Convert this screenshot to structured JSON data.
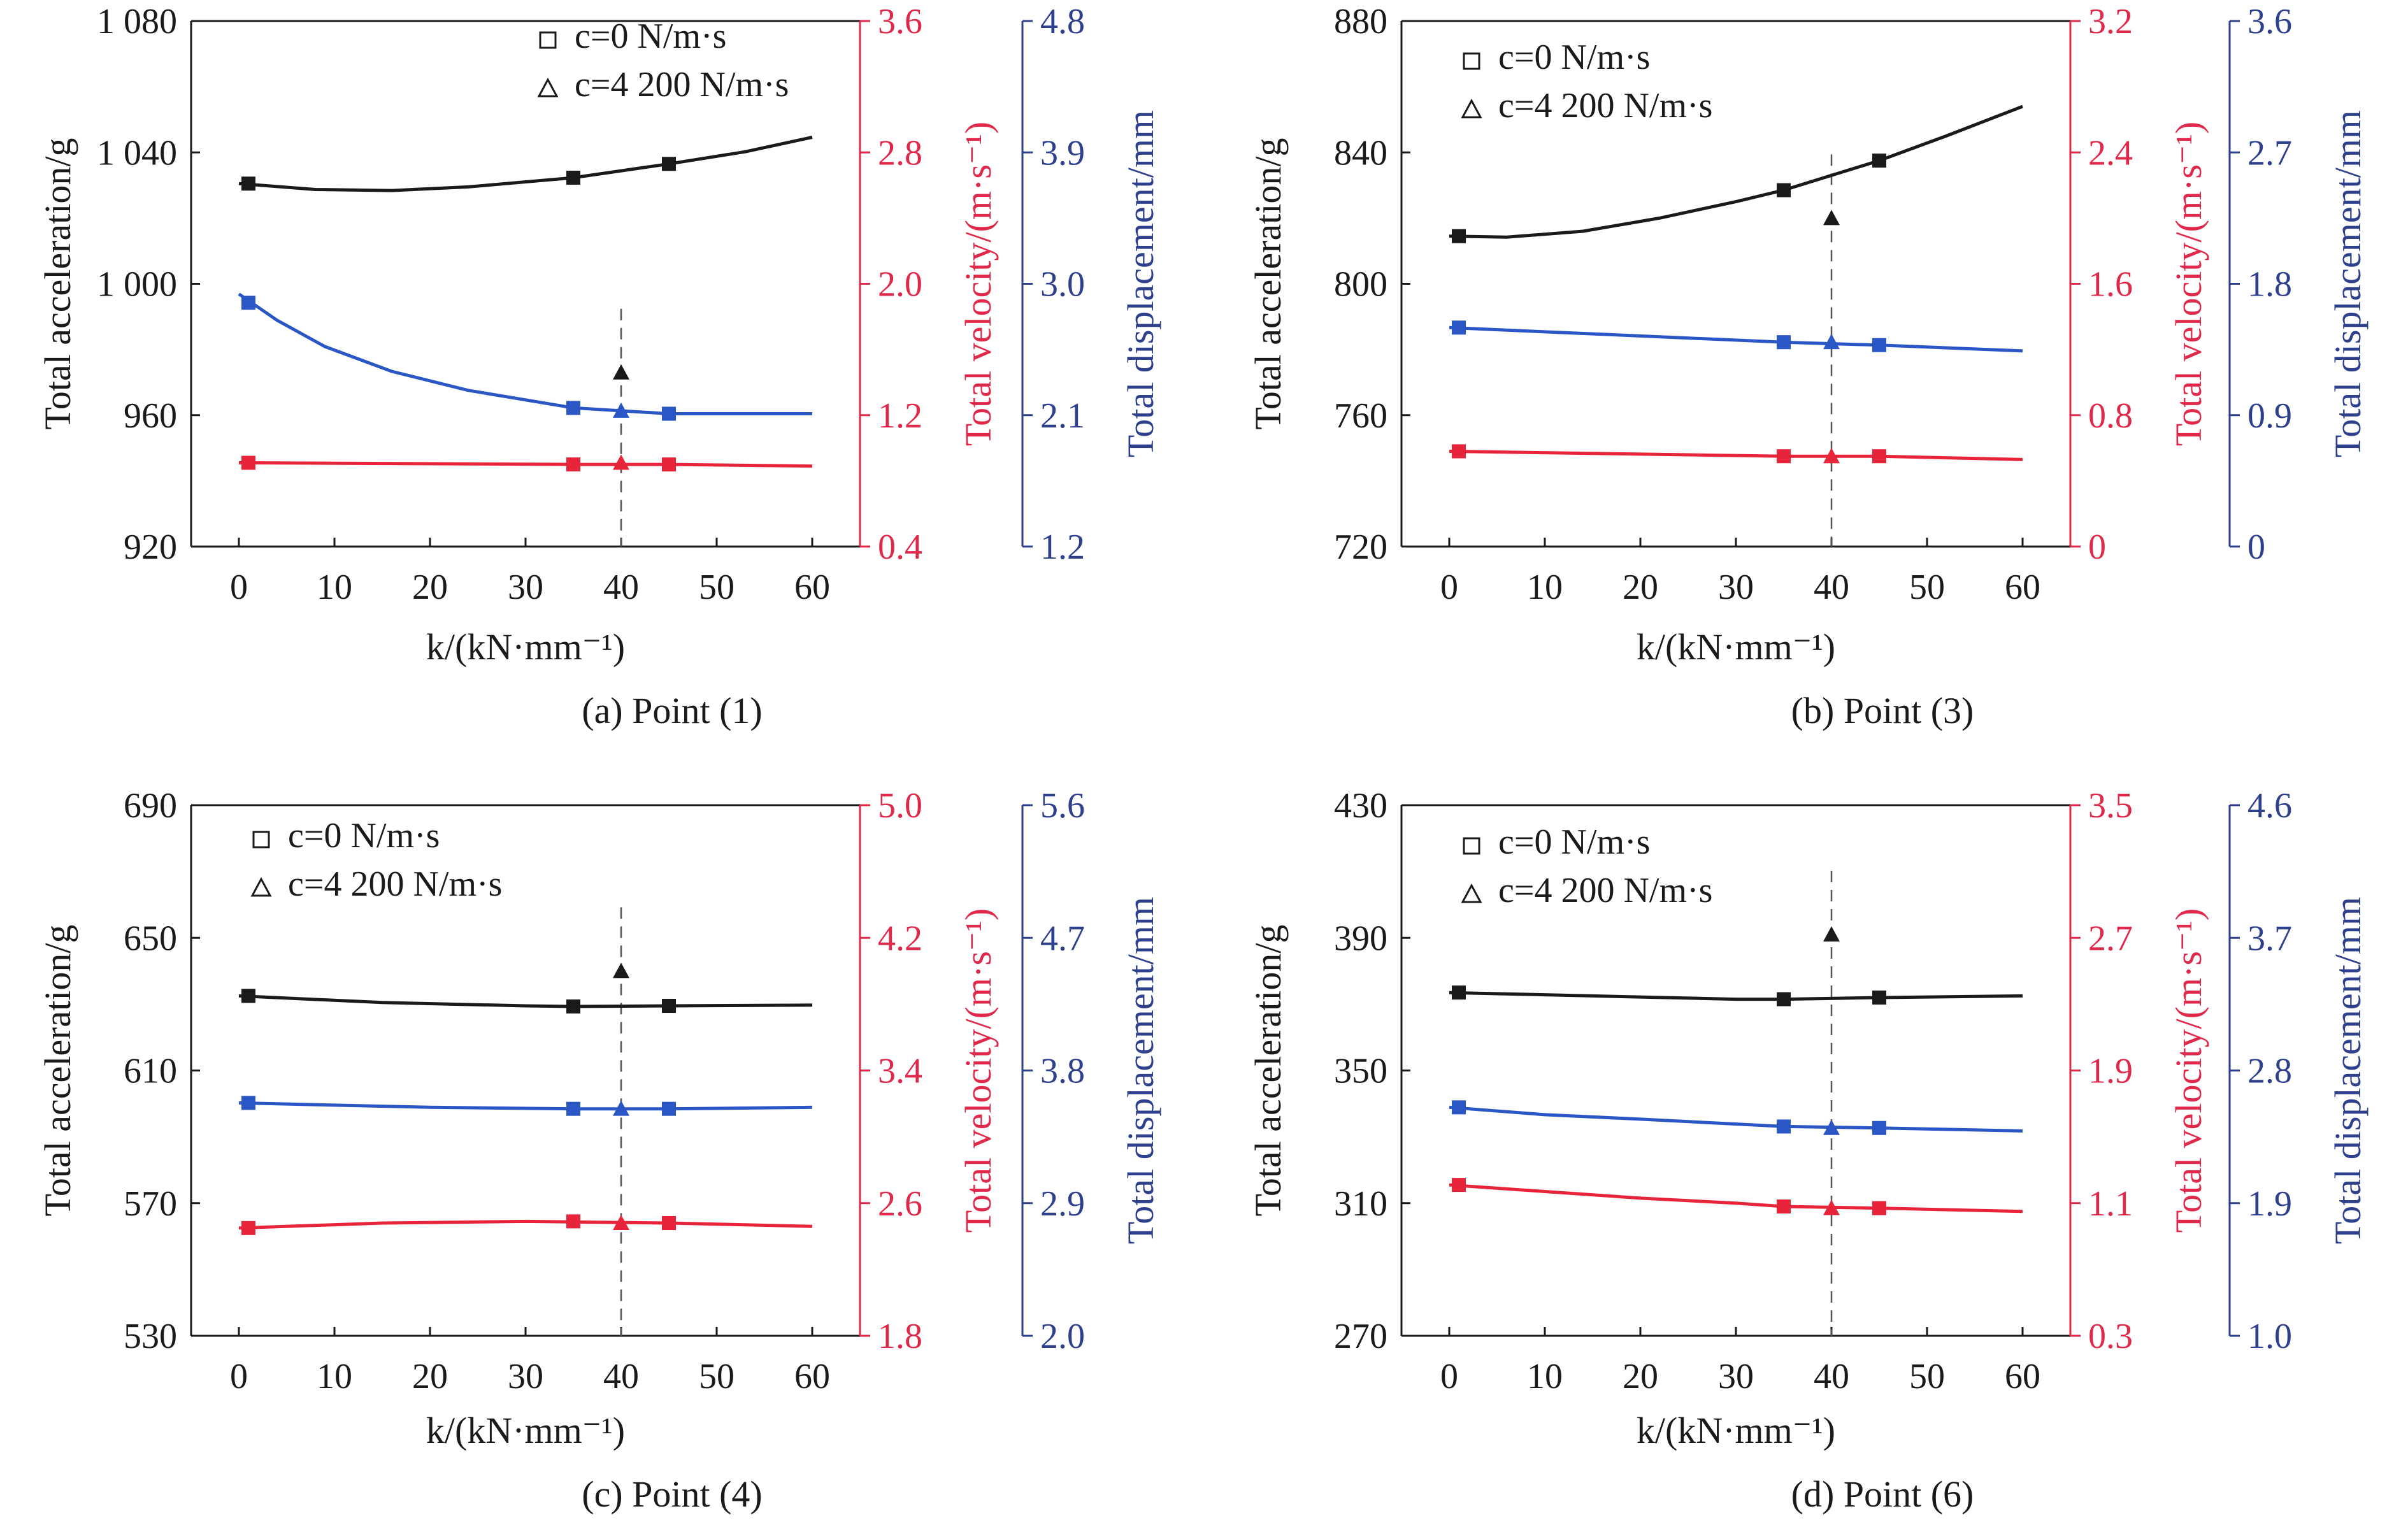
{
  "figure": {
    "colors": {
      "acceleration": "#1a1a1a",
      "velocity": "#e8243a",
      "velocity_axis": "#e0284a",
      "displacement": "#2a56c6",
      "displacement_axis": "#2e3f8c"
    }
  },
  "chart_data": [
    {
      "type": "line",
      "caption": "(a) Point (1)",
      "xlabel": "k/(kN·mm⁻¹)",
      "x_ticks": [
        0,
        10,
        20,
        30,
        40,
        50,
        60
      ],
      "xlim": [
        -5,
        65
      ],
      "y_axes": {
        "left": {
          "label": "Total acceleration/g",
          "lim": [
            920,
            1080
          ],
          "ticks": [
            "920",
            "960",
            "1 000",
            "1 040",
            "1 080"
          ]
        },
        "right1": {
          "label": "Total velocity/(m·s⁻¹)",
          "lim": [
            0.4,
            3.6
          ],
          "ticks": [
            "0.4",
            "1.2",
            "2.0",
            "2.8",
            "3.6"
          ]
        },
        "right2": {
          "label": "Total displacement/mm",
          "lim": [
            1.2,
            4.8
          ],
          "ticks": [
            "1.2",
            "2.1",
            "3.0",
            "3.9",
            "4.8"
          ]
        }
      },
      "legend": [
        "c=0 N/m·s",
        "c=4 200 N/m·s"
      ],
      "reference_line_x": 40,
      "series": [
        {
          "axis": "left",
          "color_key": "acceleration",
          "x": [
            0,
            8,
            16,
            24,
            35,
            45,
            53,
            60
          ],
          "y": [
            1030.5,
            1028.7,
            1028.4,
            1029.5,
            1032.3,
            1036.5,
            1040.2,
            1044.6
          ],
          "markers_x": [
            1,
            35,
            45
          ],
          "markers_y": [
            1030.5,
            1032.3,
            1036.5
          ],
          "damped": {
            "x": 40,
            "y": 973
          }
        },
        {
          "axis": "right1",
          "color_key": "velocity",
          "x": [
            0,
            35,
            45,
            60
          ],
          "y": [
            0.91,
            0.9,
            0.9,
            0.89
          ],
          "markers_x": [
            1,
            35,
            45
          ],
          "markers_y": [
            0.91,
            0.9,
            0.9
          ],
          "damped": {
            "x": 40,
            "y": 0.91
          }
        },
        {
          "axis": "right2",
          "color_key": "displacement",
          "x": [
            0,
            4,
            9,
            16,
            24,
            35,
            45,
            52,
            60
          ],
          "y": [
            2.93,
            2.75,
            2.57,
            2.4,
            2.27,
            2.15,
            2.11,
            2.11,
            2.11
          ],
          "markers_x": [
            1,
            35,
            45
          ],
          "markers_y": [
            2.87,
            2.15,
            2.11
          ],
          "damped": {
            "x": 40,
            "y": 2.13
          }
        }
      ]
    },
    {
      "type": "line",
      "caption": "(b) Point (3)",
      "xlabel": "k/(kN·mm⁻¹)",
      "x_ticks": [
        0,
        10,
        20,
        30,
        40,
        50,
        60
      ],
      "xlim": [
        -5,
        65
      ],
      "y_axes": {
        "left": {
          "label": "Total acceleration/g",
          "lim": [
            720,
            880
          ],
          "ticks": [
            "720",
            "760",
            "800",
            "840",
            "880"
          ]
        },
        "right1": {
          "label": "Total velocity/(m·s⁻¹)",
          "lim": [
            0,
            3.2
          ],
          "ticks": [
            "0",
            "0.8",
            "1.6",
            "2.4",
            "3.2"
          ]
        },
        "right2": {
          "label": "Total displacement/mm",
          "lim": [
            0,
            3.6
          ],
          "ticks": [
            "0",
            "0.9",
            "1.8",
            "2.7",
            "3.6"
          ]
        }
      },
      "legend": [
        "c=0 N/m·s",
        "c=4 200 N/m·s"
      ],
      "reference_line_x": 40,
      "series": [
        {
          "axis": "left",
          "color_key": "acceleration",
          "x": [
            0,
            6,
            14,
            22,
            30,
            35,
            45,
            52,
            60
          ],
          "y": [
            814.5,
            814.2,
            816,
            820,
            825,
            828.5,
            837.5,
            845,
            854
          ],
          "markers_x": [
            1,
            35,
            45
          ],
          "markers_y": [
            814.5,
            828.5,
            837.5
          ],
          "damped": {
            "x": 40,
            "y": 820
          }
        },
        {
          "axis": "right1",
          "color_key": "velocity",
          "x": [
            0,
            35,
            45,
            60
          ],
          "y": [
            0.58,
            0.55,
            0.55,
            0.53
          ],
          "markers_x": [
            1,
            35,
            45
          ],
          "markers_y": [
            0.58,
            0.55,
            0.55
          ],
          "damped": {
            "x": 40,
            "y": 0.55
          }
        },
        {
          "axis": "right2",
          "color_key": "displacement",
          "x": [
            0,
            35,
            45,
            60
          ],
          "y": [
            1.5,
            1.4,
            1.38,
            1.34
          ],
          "markers_x": [
            1,
            35,
            45
          ],
          "markers_y": [
            1.5,
            1.4,
            1.38
          ],
          "damped": {
            "x": 40,
            "y": 1.4
          }
        }
      ]
    },
    {
      "type": "line",
      "caption": "(c) Point (4)",
      "xlabel": "k/(kN·mm⁻¹)",
      "x_ticks": [
        0,
        10,
        20,
        30,
        40,
        50,
        60
      ],
      "xlim": [
        -5,
        65
      ],
      "y_axes": {
        "left": {
          "label": "Total acceleration/g",
          "lim": [
            530,
            690
          ],
          "ticks": [
            "530",
            "570",
            "610",
            "650",
            "690"
          ]
        },
        "right1": {
          "label": "Total velocity/(m·s⁻¹)",
          "lim": [
            1.8,
            5.0
          ],
          "ticks": [
            "1.8",
            "2.6",
            "3.4",
            "4.2",
            "5.0"
          ]
        },
        "right2": {
          "label": "Total displacement/mm",
          "lim": [
            2.0,
            5.6
          ],
          "ticks": [
            "2.0",
            "2.9",
            "3.8",
            "4.7",
            "5.6"
          ]
        }
      },
      "legend": [
        "c=0 N/m·s",
        "c=4 200 N/m·s"
      ],
      "reference_line_x": 40,
      "series": [
        {
          "axis": "left",
          "color_key": "acceleration",
          "x": [
            0,
            15,
            30,
            35,
            45,
            60
          ],
          "y": [
            632.5,
            630.5,
            629.5,
            629.3,
            629.5,
            629.7
          ],
          "markers_x": [
            1,
            35,
            45
          ],
          "markers_y": [
            632.5,
            629.3,
            629.5
          ],
          "damped": {
            "x": 40,
            "y": 640
          }
        },
        {
          "axis": "right1",
          "color_key": "velocity",
          "x": [
            0,
            15,
            30,
            45,
            60
          ],
          "y": [
            2.45,
            2.48,
            2.49,
            2.48,
            2.46
          ],
          "markers_x": [
            1,
            35,
            45
          ],
          "markers_y": [
            2.45,
            2.49,
            2.48
          ],
          "damped": {
            "x": 40,
            "y": 2.48
          }
        },
        {
          "axis": "right2",
          "color_key": "displacement",
          "x": [
            0,
            20,
            35,
            45,
            60
          ],
          "y": [
            3.58,
            3.55,
            3.54,
            3.54,
            3.55
          ],
          "markers_x": [
            1,
            35,
            45
          ],
          "markers_y": [
            3.58,
            3.54,
            3.54
          ],
          "damped": {
            "x": 40,
            "y": 3.54
          }
        }
      ]
    },
    {
      "type": "line",
      "caption": "(d) Point (6)",
      "xlabel": "k/(kN·mm⁻¹)",
      "x_ticks": [
        0,
        10,
        20,
        30,
        40,
        50,
        60
      ],
      "xlim": [
        -5,
        65
      ],
      "y_axes": {
        "left": {
          "label": "Total acceleration/g",
          "lim": [
            270,
            430
          ],
          "ticks": [
            "270",
            "310",
            "350",
            "390",
            "430"
          ]
        },
        "right1": {
          "label": "Total velocity/(m·s⁻¹)",
          "lim": [
            0.3,
            3.5
          ],
          "ticks": [
            "0.3",
            "1.1",
            "1.9",
            "2.7",
            "3.5"
          ]
        },
        "right2": {
          "label": "Total displacement/mm",
          "lim": [
            1.0,
            4.6
          ],
          "ticks": [
            "1.0",
            "1.9",
            "2.8",
            "3.7",
            "4.6"
          ]
        }
      },
      "legend": [
        "c=0 N/m·s",
        "c=4 200 N/m·s"
      ],
      "reference_line_x": 40,
      "series": [
        {
          "axis": "left",
          "color_key": "acceleration",
          "x": [
            0,
            15,
            30,
            35,
            45,
            60
          ],
          "y": [
            373.5,
            372.5,
            371.5,
            371.5,
            372,
            372.5
          ],
          "markers_x": [
            1,
            35,
            45
          ],
          "markers_y": [
            373.5,
            371.5,
            372
          ],
          "damped": {
            "x": 40,
            "y": 391
          }
        },
        {
          "axis": "right1",
          "color_key": "velocity",
          "x": [
            0,
            10,
            20,
            30,
            35,
            45,
            60
          ],
          "y": [
            1.21,
            1.17,
            1.13,
            1.1,
            1.08,
            1.07,
            1.05
          ],
          "markers_x": [
            1,
            35,
            45
          ],
          "markers_y": [
            1.21,
            1.08,
            1.07
          ],
          "damped": {
            "x": 40,
            "y": 1.07
          }
        },
        {
          "axis": "right2",
          "color_key": "displacement",
          "x": [
            0,
            10,
            20,
            35,
            45,
            60
          ],
          "y": [
            2.55,
            2.5,
            2.47,
            2.42,
            2.41,
            2.39
          ],
          "markers_x": [
            1,
            35,
            45
          ],
          "markers_y": [
            2.55,
            2.42,
            2.41
          ],
          "damped": {
            "x": 40,
            "y": 2.41
          }
        }
      ]
    }
  ]
}
